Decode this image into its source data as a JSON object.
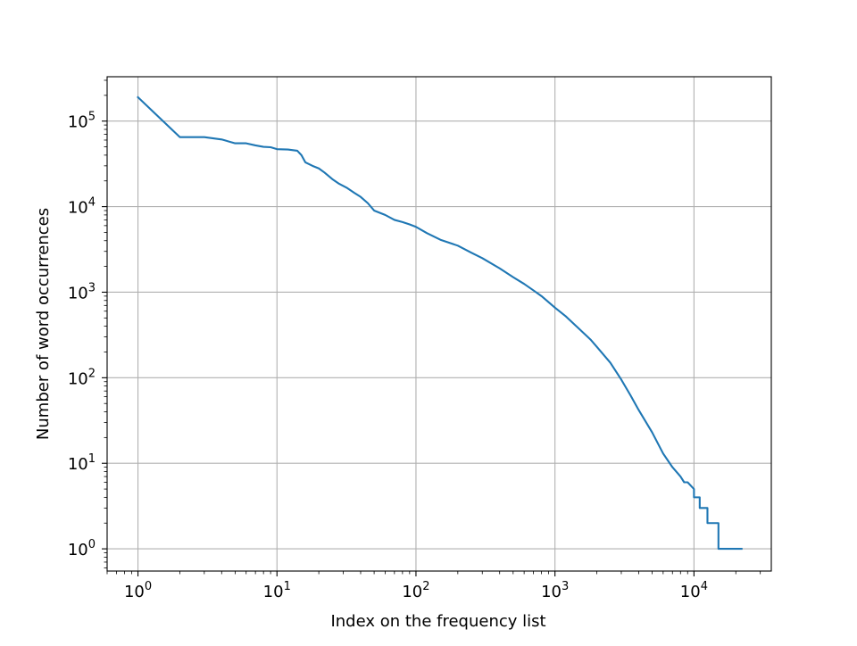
{
  "chart_data": {
    "type": "line",
    "title": "",
    "xlabel": "Index on the frequency list",
    "ylabel": "Number of word occurrences",
    "x_scale": "log",
    "y_scale": "log",
    "xlim": [
      0.6,
      36000
    ],
    "ylim": [
      0.55,
      330000
    ],
    "grid": true,
    "line_color": "#1f77b4",
    "x_ticks": [
      {
        "base": "10",
        "exp": "0"
      },
      {
        "base": "10",
        "exp": "1"
      },
      {
        "base": "10",
        "exp": "2"
      },
      {
        "base": "10",
        "exp": "3"
      },
      {
        "base": "10",
        "exp": "4"
      }
    ],
    "y_ticks": [
      {
        "base": "10",
        "exp": "0"
      },
      {
        "base": "10",
        "exp": "1"
      },
      {
        "base": "10",
        "exp": "2"
      },
      {
        "base": "10",
        "exp": "3"
      },
      {
        "base": "10",
        "exp": "4"
      },
      {
        "base": "10",
        "exp": "5"
      }
    ],
    "series": [
      {
        "values": [
          [
            1,
            190000
          ],
          [
            2,
            65000
          ],
          [
            3,
            65000
          ],
          [
            4,
            61000
          ],
          [
            5,
            55000
          ],
          [
            6,
            55000
          ],
          [
            7,
            52000
          ],
          [
            8,
            50000
          ],
          [
            9,
            49500
          ],
          [
            10,
            47000
          ],
          [
            12,
            46500
          ],
          [
            14,
            45000
          ],
          [
            15,
            40000
          ],
          [
            16,
            33000
          ],
          [
            18,
            30000
          ],
          [
            20,
            28000
          ],
          [
            22,
            25000
          ],
          [
            25,
            21000
          ],
          [
            28,
            18500
          ],
          [
            32,
            16500
          ],
          [
            36,
            14500
          ],
          [
            40,
            13000
          ],
          [
            45,
            11000
          ],
          [
            50,
            9000
          ],
          [
            60,
            8000
          ],
          [
            70,
            7000
          ],
          [
            80,
            6600
          ],
          [
            90,
            6200
          ],
          [
            100,
            5800
          ],
          [
            120,
            4900
          ],
          [
            150,
            4100
          ],
          [
            200,
            3500
          ],
          [
            250,
            2900
          ],
          [
            300,
            2500
          ],
          [
            400,
            1900
          ],
          [
            500,
            1500
          ],
          [
            600,
            1250
          ],
          [
            700,
            1050
          ],
          [
            800,
            900
          ],
          [
            1000,
            660
          ],
          [
            1200,
            520
          ],
          [
            1500,
            370
          ],
          [
            1800,
            280
          ],
          [
            2000,
            230
          ],
          [
            2500,
            150
          ],
          [
            3000,
            95
          ],
          [
            3500,
            62
          ],
          [
            4000,
            42
          ],
          [
            5000,
            23
          ],
          [
            6000,
            13
          ],
          [
            7000,
            9
          ],
          [
            8000,
            7
          ],
          [
            8500,
            6
          ],
          [
            9000,
            6
          ],
          [
            10000,
            5
          ],
          [
            10000,
            4
          ],
          [
            11000,
            4
          ],
          [
            11000,
            3
          ],
          [
            12500,
            3
          ],
          [
            12500,
            2
          ],
          [
            15000,
            2
          ],
          [
            15000,
            1
          ],
          [
            22000,
            1
          ]
        ]
      }
    ]
  }
}
